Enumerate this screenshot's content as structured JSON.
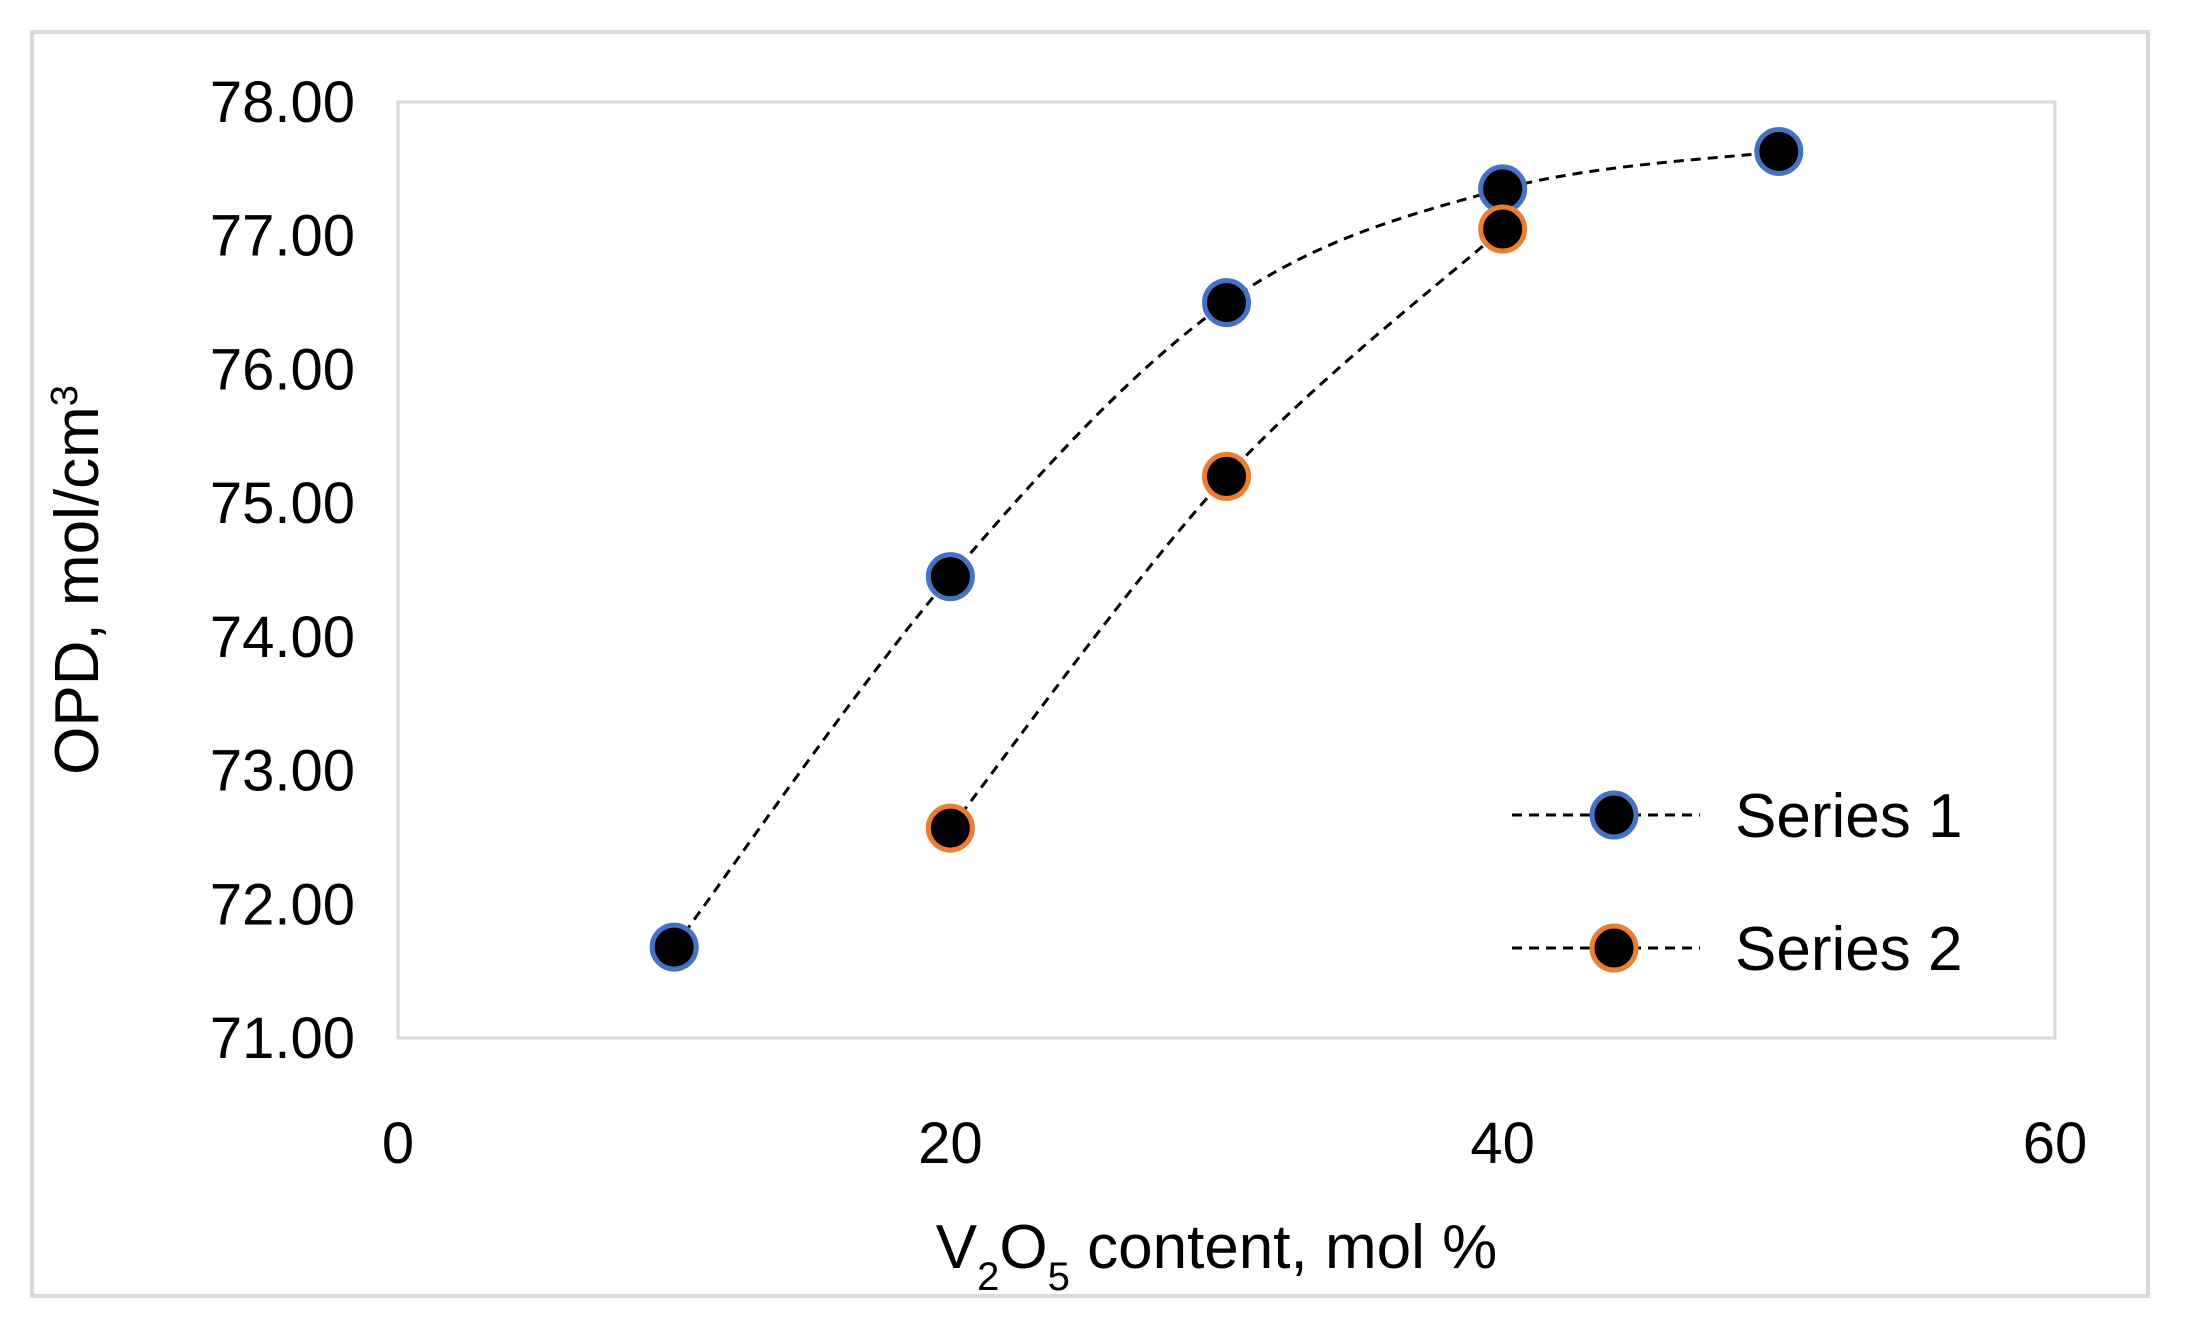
{
  "chart_data": {
    "type": "scatter",
    "title": "",
    "xlabel": "V2O5 content, mol %",
    "xlabel_parts": {
      "pre": "V",
      "sub1": "2",
      "mid": "O",
      "sub2": "5",
      "post": " content, mol %"
    },
    "ylabel": "OPD, mol/cm3",
    "ylabel_parts": {
      "base": "OPD, mol/cm",
      "sup": "3"
    },
    "xlim": [
      0,
      60
    ],
    "ylim": [
      71.0,
      78.0
    ],
    "x_ticks": [
      0,
      20,
      40,
      60
    ],
    "x_tick_labels": [
      "0",
      "20",
      "40",
      "60"
    ],
    "y_ticks": [
      71,
      72,
      73,
      74,
      75,
      76,
      77,
      78
    ],
    "y_tick_labels": [
      "71.00",
      "72.00",
      "73.00",
      "74.00",
      "75.00",
      "76.00",
      "77.00",
      "78.00"
    ],
    "grid": false,
    "legend_position": "bottom-right",
    "series": [
      {
        "name": "Series 1",
        "marker_fill": "#000000",
        "marker_edge": "#4472c4",
        "line_style": "dashed",
        "x": [
          10,
          20,
          30,
          40,
          50
        ],
        "y": [
          71.68,
          74.45,
          76.5,
          77.35,
          77.63
        ]
      },
      {
        "name": "Series 2",
        "marker_fill": "#000000",
        "marker_edge": "#ed7d31",
        "line_style": "dashed",
        "x": [
          20,
          30,
          40
        ],
        "y": [
          72.57,
          75.2,
          77.05
        ]
      }
    ]
  }
}
